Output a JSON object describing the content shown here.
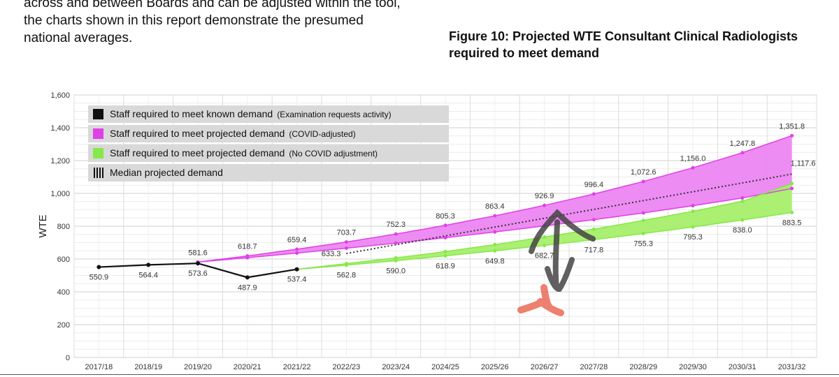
{
  "intro_lines": [
    "across and between Boards and can be adjusted within the tool,",
    "the charts shown in this report demonstrate the presumed",
    "national averages."
  ],
  "figure_title_lines": [
    "Figure 10: Projected WTE Consultant Clinical Radiologists",
    "required to meet demand"
  ],
  "colors": {
    "known": "#111111",
    "covid": "#e040e6",
    "covid_fill": "#ec86f2",
    "nocovid": "#86e84a",
    "nocovid_fill": "#a6ef6a",
    "median": "#333333",
    "legend_bg": "#d9d9d9"
  },
  "chart_data": {
    "type": "line",
    "title": "",
    "xlabel": "",
    "ylabel": "WTE",
    "ylim": [
      0,
      1600
    ],
    "yticks": [
      0,
      200,
      400,
      600,
      800,
      1000,
      1200,
      1400,
      1600
    ],
    "ytick_labels": [
      "0",
      "200",
      "400",
      "600",
      "800",
      "1,000",
      "1,200",
      "1,400",
      "1,600"
    ],
    "categories": [
      "2017/18",
      "2018/19",
      "2019/20",
      "2020/21",
      "2021/22",
      "2022/23",
      "2023/24",
      "2024/25",
      "2025/26",
      "2026/27",
      "2027/28",
      "2028/29",
      "2029/30",
      "2030/31",
      "2031/32"
    ],
    "grid": true,
    "legend_position": "top-left",
    "legend": [
      {
        "key": "known",
        "main": "Staff required to meet known demand",
        "note": "(Examination requests activity)"
      },
      {
        "key": "covid",
        "main": "Staff required to meet projected demand",
        "note": "(COVID-adjusted)"
      },
      {
        "key": "nocovid",
        "main": "Staff required to meet projected demand",
        "note": "(No COVID adjustment)"
      },
      {
        "key": "median",
        "main": "Median projected demand",
        "note": ""
      }
    ],
    "series": [
      {
        "name": "Staff required to meet known demand",
        "key": "known",
        "values": [
          550.9,
          564.4,
          573.6,
          487.9,
          537.4,
          null,
          null,
          null,
          null,
          null,
          null,
          null,
          null,
          null,
          null
        ]
      },
      {
        "name": "Staff required to meet projected demand (COVID-adjusted)",
        "key": "covid",
        "upper": [
          null,
          null,
          581.6,
          618.7,
          659.4,
          703.7,
          752.3,
          805.3,
          863.4,
          926.9,
          996.4,
          1072.6,
          1156.0,
          1247.8,
          1351.8
        ],
        "lower": [
          null,
          null,
          581.6,
          608,
          636,
          666,
          697,
          730,
          765,
          802,
          840,
          881,
          925,
          972,
          1030
        ]
      },
      {
        "name": "Staff required to meet projected demand (No COVID adjustment)",
        "key": "nocovid",
        "upper": [
          null,
          null,
          null,
          null,
          537.4,
          572,
          607,
          645,
          688,
          734,
          782,
          835,
          891,
          952,
          1060
        ],
        "lower": [
          null,
          null,
          null,
          null,
          537.4,
          562.8,
          590.0,
          618.9,
          649.8,
          682.7,
          717.8,
          755.3,
          795.3,
          838.0,
          883.5
        ]
      },
      {
        "name": "Median projected demand",
        "key": "median",
        "values": [
          null,
          null,
          null,
          null,
          null,
          633.3,
          null,
          null,
          null,
          null,
          null,
          null,
          null,
          null,
          1117.6
        ]
      }
    ],
    "data_labels": [
      {
        "x": "2017/18",
        "y": 550.9,
        "text": "550.9",
        "pos": "below"
      },
      {
        "x": "2018/19",
        "y": 564.4,
        "text": "564.4",
        "pos": "below"
      },
      {
        "x": "2019/20",
        "y": 573.6,
        "text": "573.6",
        "pos": "below"
      },
      {
        "x": "2020/21",
        "y": 487.9,
        "text": "487.9",
        "pos": "below"
      },
      {
        "x": "2021/22",
        "y": 537.4,
        "text": "537.4",
        "pos": "below"
      },
      {
        "x": "2019/20",
        "y": 581.6,
        "text": "581.6",
        "pos": "above"
      },
      {
        "x": "2020/21",
        "y": 618.7,
        "text": "618.7",
        "pos": "above"
      },
      {
        "x": "2021/22",
        "y": 659.4,
        "text": "659.4",
        "pos": "above"
      },
      {
        "x": "2022/23",
        "y": 703.7,
        "text": "703.7",
        "pos": "above"
      },
      {
        "x": "2023/24",
        "y": 752.3,
        "text": "752.3",
        "pos": "above"
      },
      {
        "x": "2024/25",
        "y": 805.3,
        "text": "805.3",
        "pos": "above"
      },
      {
        "x": "2025/26",
        "y": 863.4,
        "text": "863.4",
        "pos": "above"
      },
      {
        "x": "2026/27",
        "y": 926.9,
        "text": "926.9",
        "pos": "above"
      },
      {
        "x": "2027/28",
        "y": 996.4,
        "text": "996.4",
        "pos": "above"
      },
      {
        "x": "2028/29",
        "y": 1072.6,
        "text": "1,072.6",
        "pos": "above"
      },
      {
        "x": "2029/30",
        "y": 1156.0,
        "text": "1,156.0",
        "pos": "above"
      },
      {
        "x": "2030/31",
        "y": 1247.8,
        "text": "1,247.8",
        "pos": "above"
      },
      {
        "x": "2031/32",
        "y": 1351.8,
        "text": "1,351.8",
        "pos": "above"
      },
      {
        "x": "2022/23",
        "y": 562.8,
        "text": "562.8",
        "pos": "below"
      },
      {
        "x": "2023/24",
        "y": 590.0,
        "text": "590.0",
        "pos": "below"
      },
      {
        "x": "2024/25",
        "y": 618.9,
        "text": "618.9",
        "pos": "below"
      },
      {
        "x": "2025/26",
        "y": 649.8,
        "text": "649.8",
        "pos": "below"
      },
      {
        "x": "2026/27",
        "y": 682.7,
        "text": "682.7",
        "pos": "below"
      },
      {
        "x": "2027/28",
        "y": 717.8,
        "text": "717.8",
        "pos": "below"
      },
      {
        "x": "2028/29",
        "y": 755.3,
        "text": "755.3",
        "pos": "below"
      },
      {
        "x": "2029/30",
        "y": 795.3,
        "text": "795.3",
        "pos": "below"
      },
      {
        "x": "2030/31",
        "y": 838.0,
        "text": "838.0",
        "pos": "below"
      },
      {
        "x": "2031/32",
        "y": 883.5,
        "text": "883.5",
        "pos": "below"
      },
      {
        "x": "2022/23",
        "y": 633.3,
        "text": "633.3",
        "pos": "left"
      },
      {
        "x": "2031/32",
        "y": 1117.6,
        "text": "1,117.6",
        "pos": "right"
      }
    ]
  }
}
